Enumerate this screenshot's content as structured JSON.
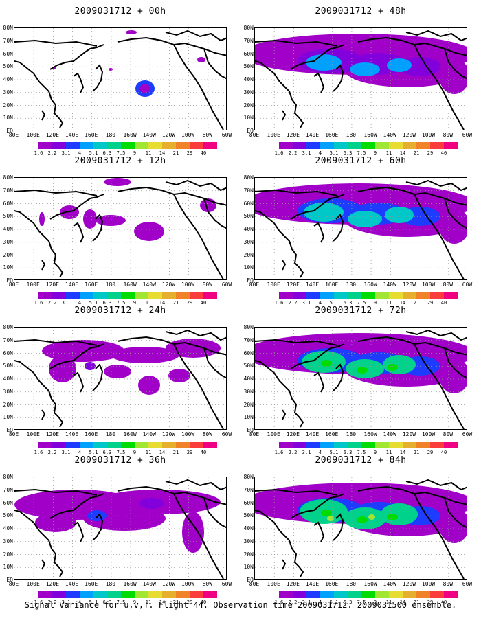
{
  "panels": [
    {
      "title": "2009031712 + 00h",
      "level": 0
    },
    {
      "title": "2009031712 + 48h",
      "level": 4
    },
    {
      "title": "2009031712 + 12h",
      "level": 1
    },
    {
      "title": "2009031712 + 60h",
      "level": 5
    },
    {
      "title": "2009031712 + 24h",
      "level": 2
    },
    {
      "title": "2009031712 + 72h",
      "level": 6
    },
    {
      "title": "2009031712 + 36h",
      "level": 3
    },
    {
      "title": "2009031712 + 84h",
      "level": 7
    }
  ],
  "lat_labels": [
    "80N",
    "70N",
    "60N",
    "50N",
    "40N",
    "30N",
    "20N",
    "10N",
    "EQ"
  ],
  "lon_labels": [
    "80E",
    "100E",
    "120E",
    "140E",
    "160E",
    "180",
    "160W",
    "140W",
    "120W",
    "100W",
    "80W",
    "60W"
  ],
  "colorbar": {
    "labels": [
      "1.6",
      "2.2",
      "3.1",
      "4",
      "5.1",
      "6.3",
      "7.5",
      "9",
      "11",
      "14",
      "21",
      "29",
      "40"
    ],
    "colors": [
      "#a000c8",
      "#8200dc",
      "#1e3cff",
      "#00a0ff",
      "#00c8c8",
      "#00d28c",
      "#00dc00",
      "#a0e632",
      "#e6dc32",
      "#e6af2d",
      "#f08228",
      "#fa3c3c",
      "#f00082"
    ]
  },
  "caption": "Signal Variance for u,v,T. Flight 44. Observation time 2009031712. 2009031500 ensemble."
}
